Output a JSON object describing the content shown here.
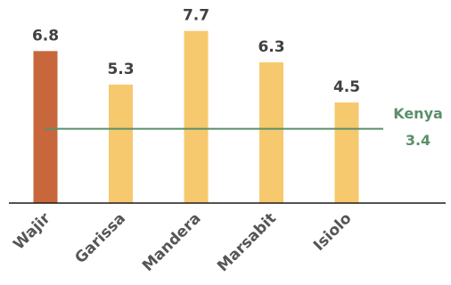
{
  "chart_data": {
    "type": "bar",
    "categories": [
      "Wajir",
      "Garissa",
      "Mandera",
      "Marsabit",
      "Isiolo"
    ],
    "values": [
      6.8,
      5.3,
      7.7,
      6.3,
      4.5
    ],
    "value_labels": [
      "6.8",
      "5.3",
      "7.7",
      "6.3",
      "4.5"
    ],
    "bar_colors": [
      "#c8673c",
      "#f7c96e",
      "#f7c96e",
      "#f7c96e",
      "#f7c96e"
    ],
    "reference_line": {
      "label": "Kenya",
      "value": 3.4,
      "value_label": "3.4",
      "color": "#5a8f6a"
    },
    "ylim": [
      0,
      8.5
    ],
    "grid": false,
    "legend": "none"
  }
}
